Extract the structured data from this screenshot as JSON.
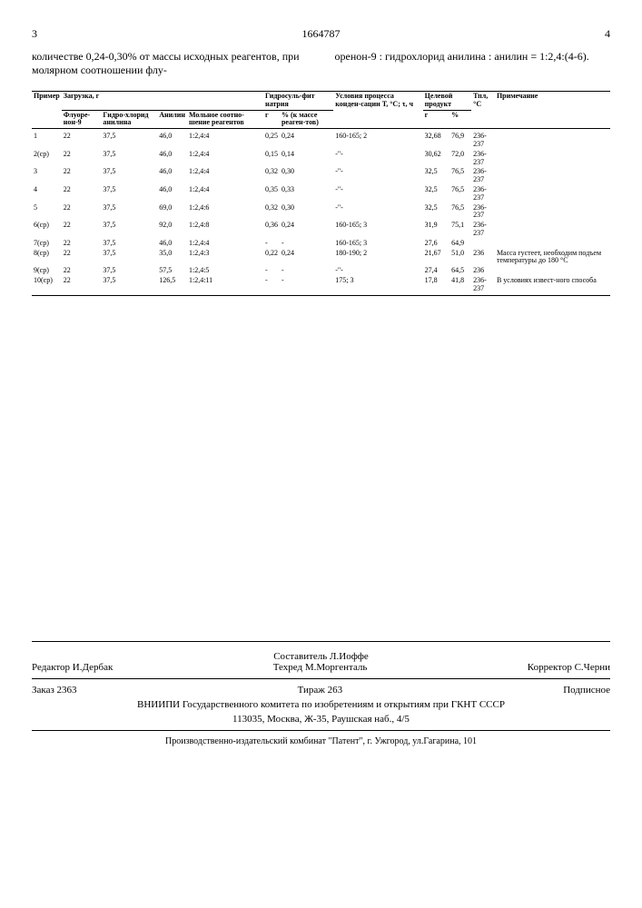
{
  "header": {
    "page_left": "3",
    "doc_number": "1664787",
    "page_right": "4"
  },
  "intro": {
    "left": "количестве 0,24-0,30% от массы исходных реагентов, при молярном соотношении флу-",
    "right": "оренон-9 : гидрохлорид анилина : анилин = 1:2,4:(4-6)."
  },
  "table": {
    "head": {
      "primer": "Пример",
      "zagruzka": "Загрузка, г",
      "fluorenon": "Флуоре-нон-9",
      "gidrohlorid": "Гидро-хлорид анилина",
      "anilin": "Анилин",
      "molratio": "Мольное соотно-шение реагентов",
      "gidrosulfit": "Гидросуль-фит натрия",
      "g": "г",
      "pct": "% (к массе реаген-тов)",
      "usloviya": "Условия процесса конден-сации Т, °С; τ, ч",
      "celevoy": "Целевой продукт",
      "g2": "г",
      "pct2": "%",
      "tpl": "Тпл, °С",
      "prim": "Примечание"
    },
    "rows": [
      {
        "n": "1",
        "f": "22",
        "h": "37,5",
        "a": "46,0",
        "m": "1:2,4:4",
        "gs": "0,25",
        "gp": "0,24",
        "u": "160-165; 2",
        "cg": "32,68",
        "cp": "76,9",
        "tp": "236-237",
        "note": ""
      },
      {
        "n": "2(ср)",
        "f": "22",
        "h": "37,5",
        "a": "46,0",
        "m": "1:2,4:4",
        "gs": "0,15",
        "gp": "0,14",
        "u": "-\"-",
        "cg": "30,62",
        "cp": "72,0",
        "tp": "236-237",
        "note": ""
      },
      {
        "n": "3",
        "f": "22",
        "h": "37,5",
        "a": "46,0",
        "m": "1:2,4:4",
        "gs": "0,32",
        "gp": "0,30",
        "u": "-\"-",
        "cg": "32,5",
        "cp": "76,5",
        "tp": "236-237",
        "note": ""
      },
      {
        "n": "4",
        "f": "22",
        "h": "37,5",
        "a": "46,0",
        "m": "1:2,4:4",
        "gs": "0,35",
        "gp": "0,33",
        "u": "-\"-",
        "cg": "32,5",
        "cp": "76,5",
        "tp": "236-237",
        "note": ""
      },
      {
        "n": "5",
        "f": "22",
        "h": "37,5",
        "a": "69,0",
        "m": "1:2,4:6",
        "gs": "0,32",
        "gp": "0,30",
        "u": "-\"-",
        "cg": "32,5",
        "cp": "76,5",
        "tp": "236-237",
        "note": ""
      },
      {
        "n": "6(ср)",
        "f": "22",
        "h": "37,5",
        "a": "92,0",
        "m": "1:2,4:8",
        "gs": "0,36",
        "gp": "0,24",
        "u": "160-165; 3",
        "cg": "31,9",
        "cp": "75,1",
        "tp": "236-237",
        "note": ""
      },
      {
        "n": "7(ср)",
        "f": "22",
        "h": "37,5",
        "a": "46,0",
        "m": "1:2,4:4",
        "gs": "-",
        "gp": "-",
        "u": "160-165; 3",
        "cg": "27,6",
        "cp": "64,9",
        "tp": "",
        "note": ""
      },
      {
        "n": "8(ср)",
        "f": "22",
        "h": "37,5",
        "a": "35,0",
        "m": "1:2,4:3",
        "gs": "0,22",
        "gp": "0,24",
        "u": "180-190; 2",
        "cg": "21,67",
        "cp": "51,0",
        "tp": "236",
        "note": "Масса густеет, необходим подъем температуры до 180 °С"
      },
      {
        "n": "9(ср)",
        "f": "22",
        "h": "37,5",
        "a": "57,5",
        "m": "1:2,4:5",
        "gs": "-",
        "gp": "-",
        "u": "-\"-",
        "cg": "27,4",
        "cp": "64,5",
        "tp": "236",
        "note": ""
      },
      {
        "n": "10(ср)",
        "f": "22",
        "h": "37,5",
        "a": "126,5",
        "m": "1:2,4:11",
        "gs": "-",
        "gp": "-",
        "u": "175; 3",
        "cg": "17,8",
        "cp": "41,8",
        "tp": "236-237",
        "note": "В условиях извест-ного способа"
      }
    ]
  },
  "footer": {
    "sostavitel": "Составитель Л.Иоффе",
    "redaktor": "Редактор И.Дербак",
    "tehred": "Техред М.Моргенталь",
    "korrektor": "Корректор С.Черни",
    "zakaz": "Заказ 2363",
    "tirazh": "Тираж 263",
    "podpisnoe": "Подписное",
    "org": "ВНИИПИ Государственного комитета по изобретениям и открытиям при ГКНТ СССР",
    "addr": "113035, Москва, Ж-35, Раушская наб., 4/5",
    "bottom": "Производственно-издательский комбинат \"Патент\", г. Ужгород, ул.Гагарина, 101"
  }
}
